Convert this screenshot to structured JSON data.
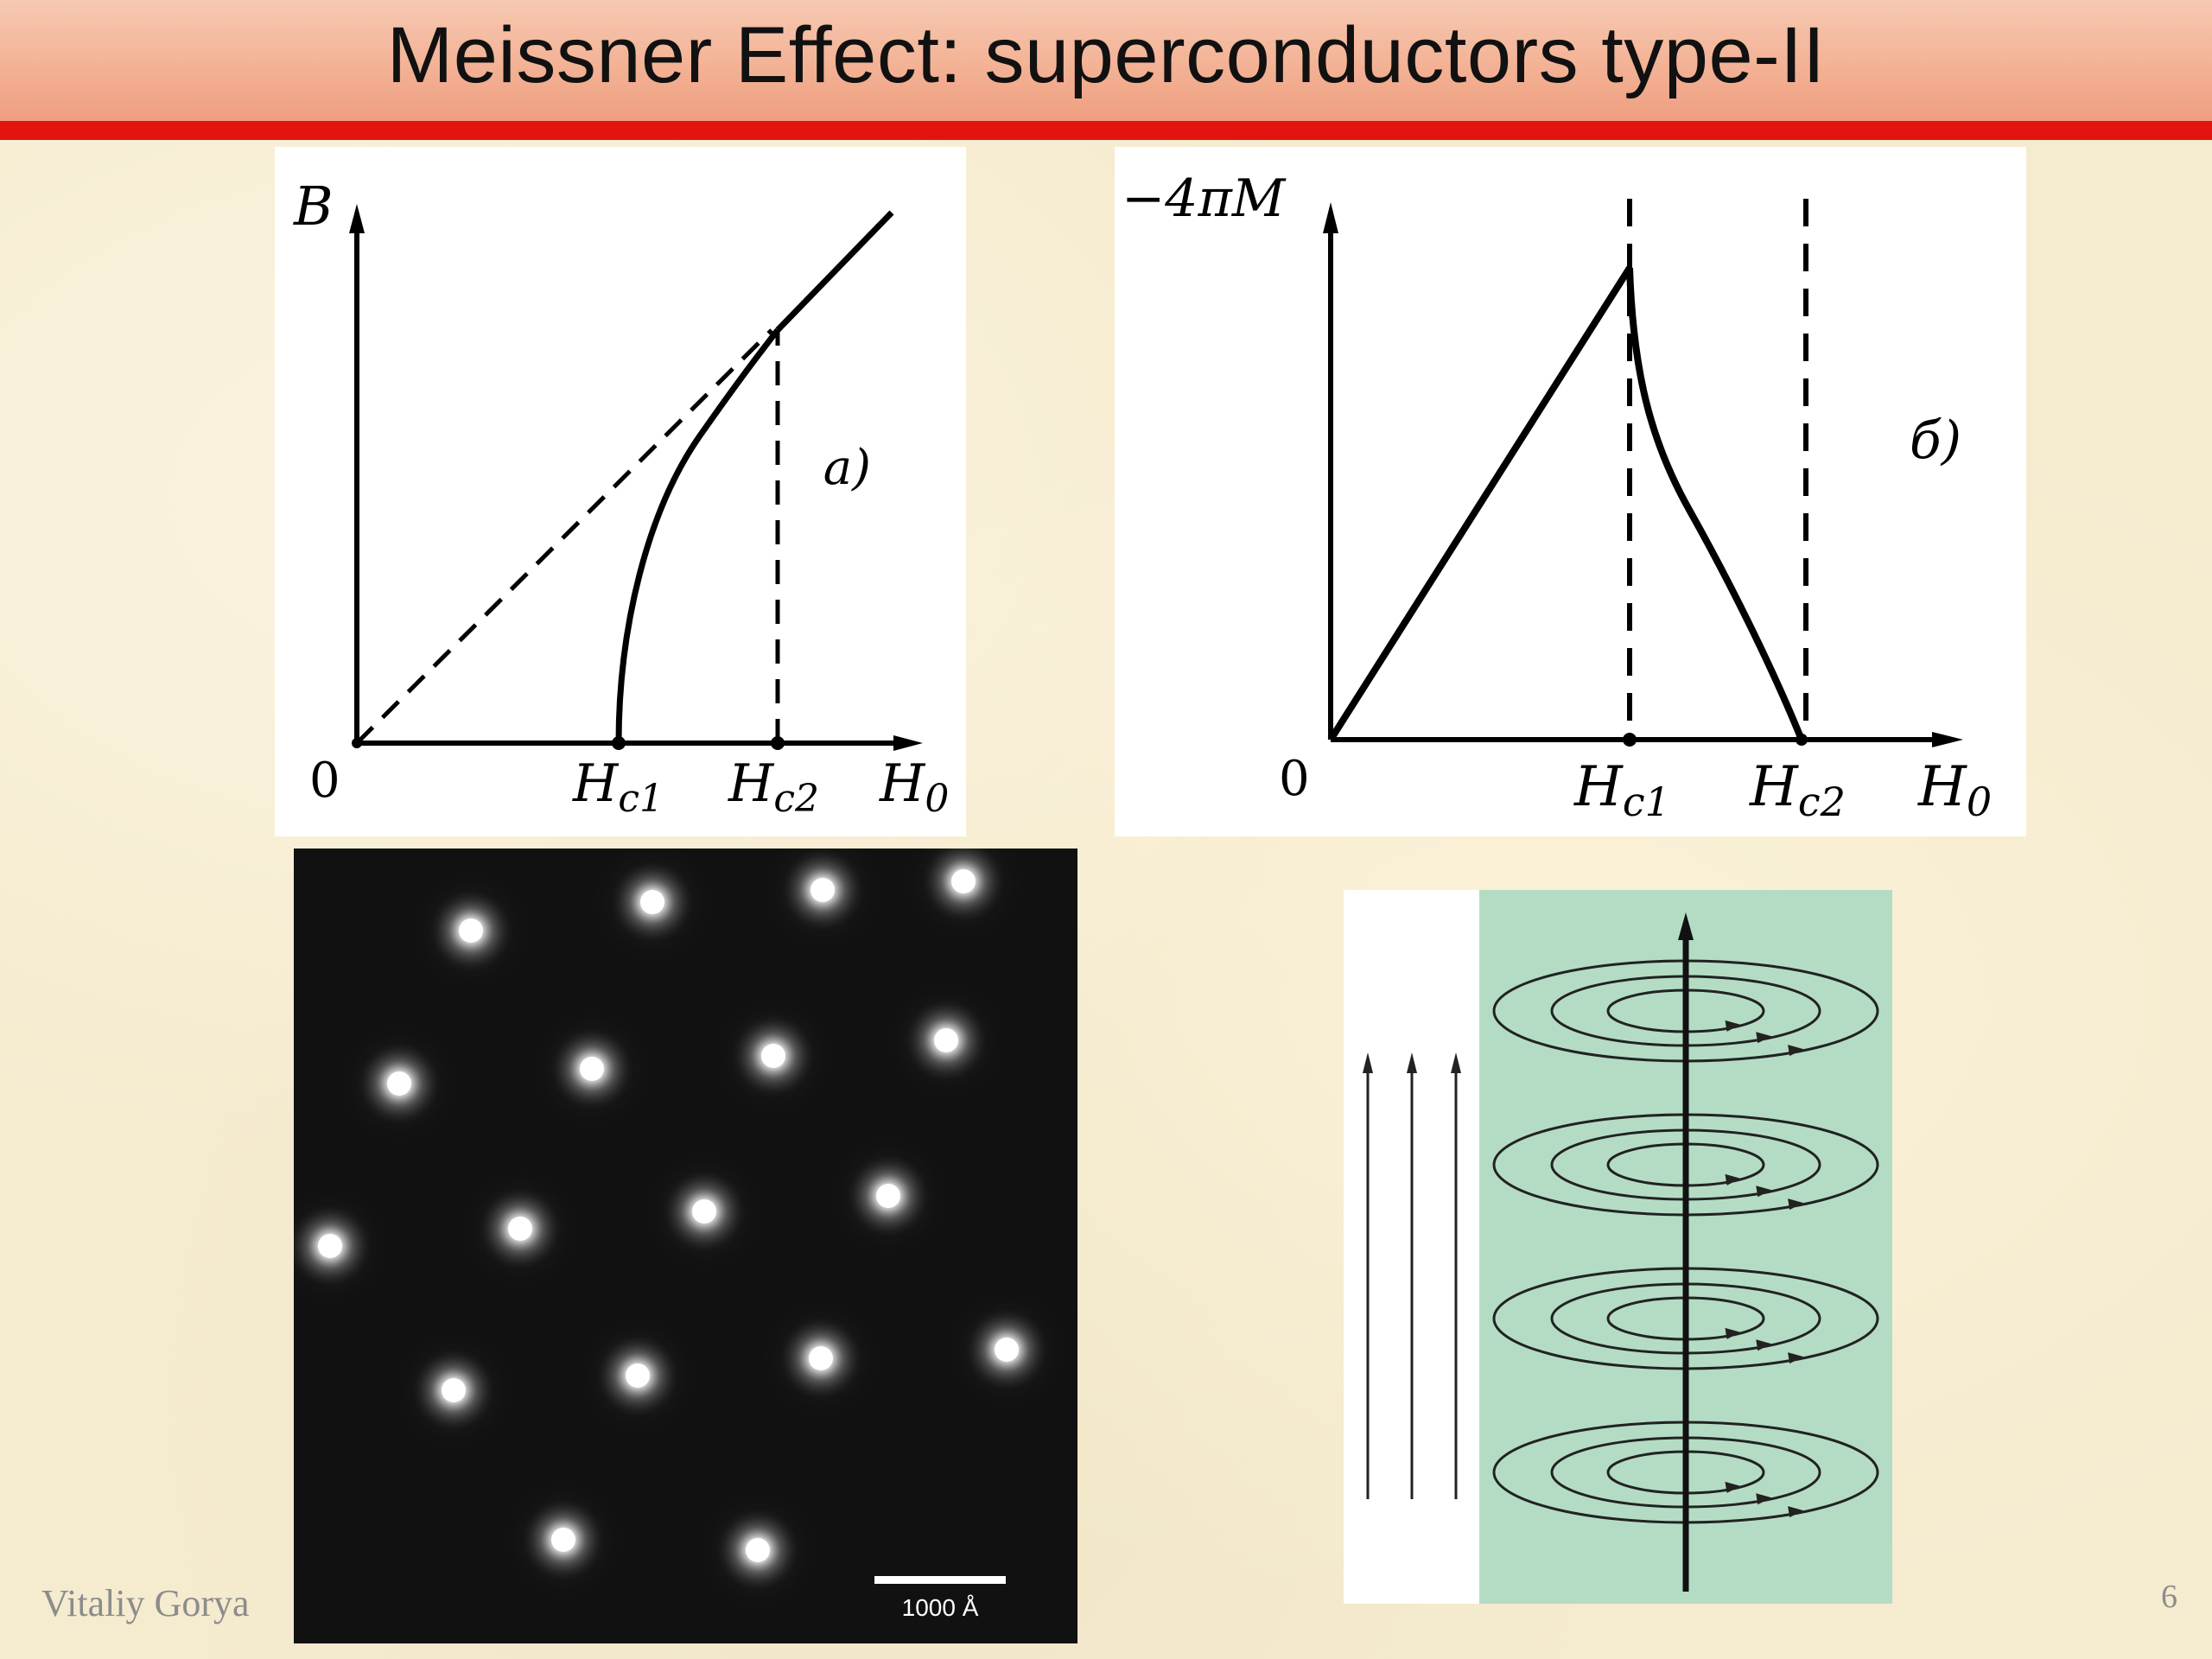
{
  "slide": {
    "title": "Meissner Effect: superconductors type-II",
    "author": "Vitaliy Gorya",
    "page_number": "6",
    "colors": {
      "title_bar": "#f3b295",
      "title_rule": "#e3140f",
      "background": "#f5ebcf",
      "superconductor_fill": "#b4dcc4"
    }
  },
  "graph_a": {
    "y_label": "B",
    "origin_label": "0",
    "tick_hc1": "H",
    "tick_hc1_sub": "c1",
    "tick_hc2": "H",
    "tick_hc2_sub": "c2",
    "x_label": "H",
    "x_label_sub": "0",
    "panel_label": "a)"
  },
  "graph_b": {
    "y_label": "−4πM",
    "origin_label": "0",
    "tick_hc1": "H",
    "tick_hc1_sub": "c1",
    "tick_hc2": "H",
    "tick_hc2_sub": "c2",
    "x_label": "H",
    "x_label_sub": "0",
    "panel_label": "б)"
  },
  "vortex_photo": {
    "scale_bar_label": "1000 Å"
  },
  "vortex_diagram": {
    "field_line_count": 3,
    "vortex_level_count": 4,
    "icon": "vortex-current-loops"
  }
}
